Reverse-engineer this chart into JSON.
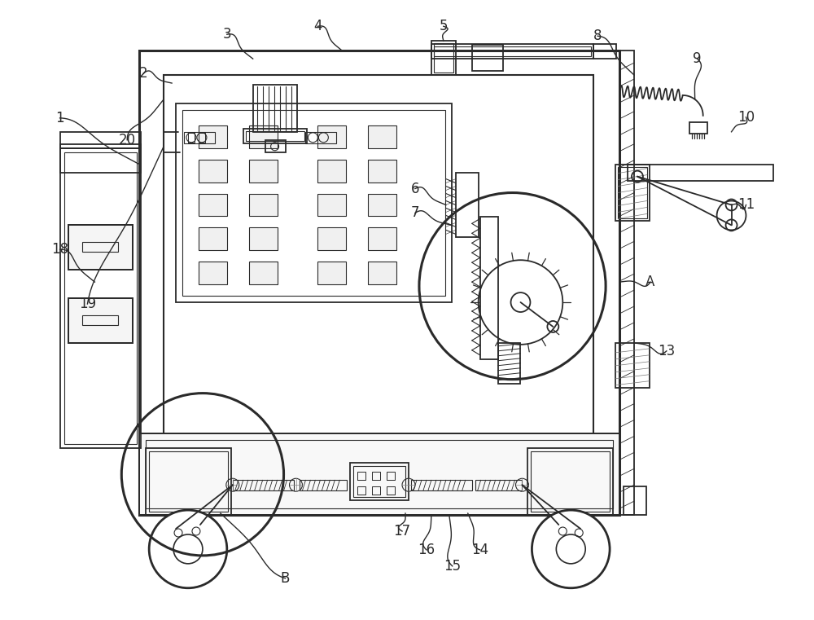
{
  "bg_color": "#ffffff",
  "lc": "#2a2a2a",
  "lw_main": 1.8,
  "lw_med": 1.3,
  "lw_thin": 0.8,
  "figsize": [
    10.0,
    7.61
  ],
  "dpi": 100
}
